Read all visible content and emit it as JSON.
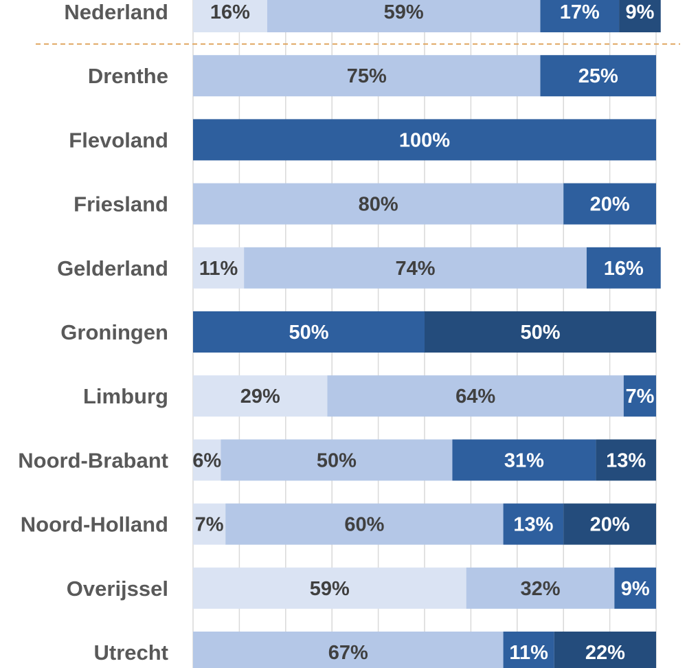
{
  "colors": {
    "s1": "#dae3f3",
    "s2": "#b4c7e7",
    "s3": "#2e5f9e",
    "s4": "#244c7c",
    "text_dark": "#404040",
    "text_light": "#ffffff",
    "grid": "#d9d9d9",
    "separator": "#e0a864"
  },
  "chart_data": {
    "type": "bar",
    "orientation": "horizontal",
    "stacked": true,
    "percent_stacked": true,
    "xlim": [
      0,
      100
    ],
    "grid": true,
    "legend": "none",
    "series": [
      {
        "name": "series-1",
        "color_key": "s1"
      },
      {
        "name": "series-2",
        "color_key": "s2"
      },
      {
        "name": "series-3",
        "color_key": "s3"
      },
      {
        "name": "series-4",
        "color_key": "s4"
      }
    ],
    "rows": [
      {
        "label": "Nederland",
        "values": [
          16,
          59,
          17,
          9
        ]
      },
      {
        "label": "Drenthe",
        "values": [
          0,
          75,
          25,
          0
        ]
      },
      {
        "label": "Flevoland",
        "values": [
          0,
          0,
          100,
          0
        ]
      },
      {
        "label": "Friesland",
        "values": [
          0,
          80,
          20,
          0
        ]
      },
      {
        "label": "Gelderland",
        "values": [
          11,
          74,
          16,
          0
        ]
      },
      {
        "label": "Groningen",
        "values": [
          0,
          0,
          50,
          50
        ]
      },
      {
        "label": "Limburg",
        "values": [
          29,
          64,
          7,
          0
        ]
      },
      {
        "label": "Noord-Brabant",
        "values": [
          6,
          50,
          31,
          13
        ]
      },
      {
        "label": "Noord-Holland",
        "values": [
          7,
          60,
          13,
          20
        ]
      },
      {
        "label": "Overijssel",
        "values": [
          59,
          32,
          9,
          0
        ]
      },
      {
        "label": "Utrecht",
        "values": [
          0,
          67,
          11,
          22
        ]
      }
    ],
    "separator_after": "Nederland"
  }
}
